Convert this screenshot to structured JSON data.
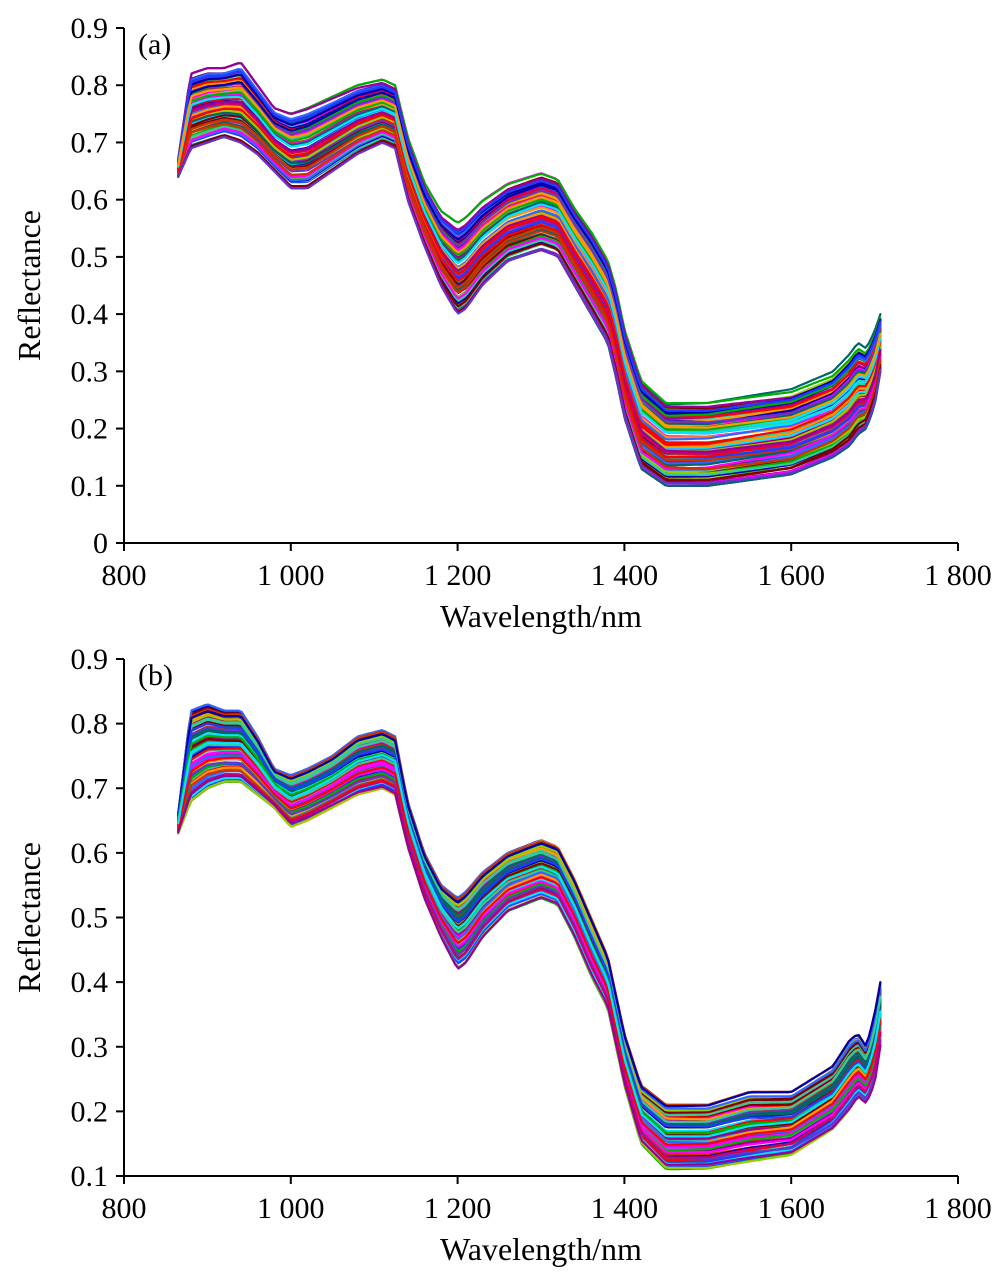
{
  "chart_data": [
    {
      "type": "line",
      "panel_label": "(a)",
      "xlabel": "Wavelength/nm",
      "ylabel": "Reflectance",
      "xlim": [
        800,
        1800
      ],
      "ylim": [
        0,
        0.9
      ],
      "x_ticks": [
        "800",
        "1 000",
        "1 200",
        "1 400",
        "1 600",
        "1 800"
      ],
      "x_tick_values": [
        800,
        1000,
        1200,
        1400,
        1600,
        1800
      ],
      "y_ticks": [
        "0",
        "0.1",
        "0.2",
        "0.3",
        "0.4",
        "0.5",
        "0.6",
        "0.7",
        "0.8",
        "0.9"
      ],
      "y_tick_values": [
        0,
        0.1,
        0.2,
        0.3,
        0.4,
        0.5,
        0.6,
        0.7,
        0.8,
        0.9
      ],
      "grid": false,
      "legend": "none",
      "series_count": 120,
      "x": [
        865,
        880,
        900,
        920,
        940,
        960,
        980,
        1000,
        1020,
        1050,
        1080,
        1110,
        1125,
        1140,
        1160,
        1180,
        1200,
        1210,
        1230,
        1260,
        1300,
        1320,
        1340,
        1360,
        1380,
        1390,
        1400,
        1420,
        1450,
        1500,
        1550,
        1600,
        1650,
        1670,
        1680,
        1690,
        1700,
        1707
      ],
      "envelope_upper": [
        0.67,
        0.82,
        0.83,
        0.83,
        0.84,
        0.8,
        0.76,
        0.75,
        0.76,
        0.78,
        0.8,
        0.81,
        0.8,
        0.71,
        0.63,
        0.58,
        0.56,
        0.57,
        0.6,
        0.63,
        0.65,
        0.64,
        0.59,
        0.55,
        0.5,
        0.45,
        0.38,
        0.29,
        0.25,
        0.25,
        0.26,
        0.27,
        0.3,
        0.33,
        0.35,
        0.34,
        0.37,
        0.4
      ],
      "envelope_lower": [
        0.64,
        0.69,
        0.7,
        0.71,
        0.7,
        0.68,
        0.65,
        0.62,
        0.62,
        0.65,
        0.68,
        0.7,
        0.69,
        0.6,
        0.52,
        0.45,
        0.4,
        0.41,
        0.45,
        0.49,
        0.51,
        0.5,
        0.45,
        0.4,
        0.35,
        0.29,
        0.22,
        0.13,
        0.1,
        0.1,
        0.11,
        0.12,
        0.15,
        0.17,
        0.19,
        0.2,
        0.24,
        0.3
      ],
      "colors": [
        "#1f3cff",
        "#ff0000",
        "#00b000",
        "#00e5ff",
        "#ff00ff",
        "#7f0000",
        "#ff9900",
        "#6633cc",
        "#99cc00",
        "#006666",
        "#cc0066",
        "#3366ff",
        "#990099",
        "#33cc99",
        "#cc3300",
        "#0000aa"
      ]
    },
    {
      "type": "line",
      "panel_label": "(b)",
      "xlabel": "Wavelength/nm",
      "ylabel": "Reflectance",
      "xlim": [
        800,
        1800
      ],
      "ylim": [
        0.1,
        0.9
      ],
      "x_ticks": [
        "800",
        "1 000",
        "1 200",
        "1 400",
        "1 600",
        "1 800"
      ],
      "x_tick_values": [
        800,
        1000,
        1200,
        1400,
        1600,
        1800
      ],
      "y_ticks": [
        "0.1",
        "0.2",
        "0.3",
        "0.4",
        "0.5",
        "0.6",
        "0.7",
        "0.8",
        "0.9"
      ],
      "y_tick_values": [
        0.1,
        0.2,
        0.3,
        0.4,
        0.5,
        0.6,
        0.7,
        0.8,
        0.9
      ],
      "grid": false,
      "legend": "none",
      "series_count": 100,
      "x": [
        865,
        880,
        900,
        920,
        940,
        960,
        980,
        1000,
        1020,
        1050,
        1080,
        1110,
        1125,
        1140,
        1160,
        1180,
        1200,
        1210,
        1230,
        1260,
        1300,
        1320,
        1340,
        1360,
        1380,
        1390,
        1400,
        1420,
        1450,
        1500,
        1550,
        1600,
        1650,
        1670,
        1680,
        1690,
        1700,
        1707
      ],
      "envelope_upper": [
        0.66,
        0.82,
        0.83,
        0.82,
        0.82,
        0.78,
        0.73,
        0.72,
        0.73,
        0.75,
        0.78,
        0.79,
        0.78,
        0.68,
        0.6,
        0.55,
        0.53,
        0.54,
        0.57,
        0.6,
        0.62,
        0.61,
        0.56,
        0.5,
        0.44,
        0.38,
        0.32,
        0.24,
        0.21,
        0.21,
        0.23,
        0.23,
        0.27,
        0.31,
        0.32,
        0.3,
        0.35,
        0.4
      ],
      "envelope_lower": [
        0.63,
        0.68,
        0.7,
        0.71,
        0.71,
        0.69,
        0.67,
        0.64,
        0.65,
        0.67,
        0.69,
        0.7,
        0.69,
        0.61,
        0.53,
        0.47,
        0.42,
        0.43,
        0.47,
        0.51,
        0.53,
        0.52,
        0.47,
        0.41,
        0.36,
        0.3,
        0.24,
        0.15,
        0.11,
        0.11,
        0.12,
        0.13,
        0.17,
        0.2,
        0.22,
        0.21,
        0.24,
        0.3
      ],
      "colors": [
        "#1f3cff",
        "#ff0000",
        "#00b000",
        "#00e5ff",
        "#ff00ff",
        "#7f0000",
        "#ff9900",
        "#6633cc",
        "#99cc00",
        "#006666",
        "#cc0066",
        "#3366ff",
        "#990099",
        "#33cc99",
        "#cc3300",
        "#0000aa"
      ]
    }
  ]
}
